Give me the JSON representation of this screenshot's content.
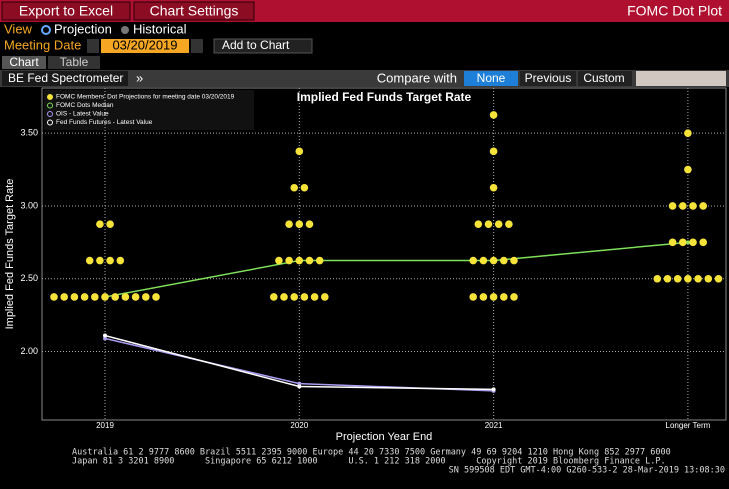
{
  "toolbar": {
    "export": "Export to Excel",
    "settings": "Chart Settings",
    "title": "FOMC Dot Plot"
  },
  "view": {
    "label": "View",
    "options": [
      "Projection",
      "Historical"
    ]
  },
  "meeting": {
    "label": "Meeting Date",
    "date": "03/20/2019",
    "add": "Add to Chart"
  },
  "tabs": [
    "Chart",
    "Table"
  ],
  "compare": {
    "source": "BE Fed Spectrometer",
    "more": "»",
    "label": "Compare with",
    "options": [
      "None",
      "Previous",
      "Custom"
    ]
  },
  "footer": [
    "Australia 61 2 9777 8600 Brazil 5511 2395 9000 Europe 44 20 7330 7500 Germany 49 69 9204 1210 Hong Kong 852 2977 6000",
    "Japan 81 3 3201 8900      Singapore 65 6212 1000      U.S. 1 212 318 2000      Copyright 2019 Bloomberg Finance L.P.",
    "SN 599508 EDT  GMT-4:00 G260-533-2 28-Mar-2019 13:08:30"
  ],
  "chart_data": {
    "type": "scatter",
    "title": "Implied Fed Funds Target Rate",
    "x_label": "Projection Year End",
    "y_label": "Implied Fed Funds Target Rate",
    "categories": [
      "2019",
      "2020",
      "2021",
      "Longer Term"
    ],
    "dots": {
      "name": "FOMC Members' Dot Projections for meeting date 03/20/2019",
      "color": "#f5e33a",
      "values": [
        [
          2.375,
          2.375,
          2.375,
          2.375,
          2.375,
          2.375,
          2.375,
          2.375,
          2.375,
          2.375,
          2.375,
          2.625,
          2.625,
          2.625,
          2.625,
          2.875,
          2.875
        ],
        [
          2.375,
          2.375,
          2.375,
          2.375,
          2.375,
          2.375,
          2.625,
          2.625,
          2.625,
          2.625,
          2.625,
          2.875,
          2.875,
          2.875,
          3.125,
          3.125,
          3.375
        ],
        [
          2.375,
          2.375,
          2.375,
          2.375,
          2.375,
          2.625,
          2.625,
          2.625,
          2.625,
          2.625,
          2.875,
          2.875,
          2.875,
          2.875,
          3.125,
          3.375,
          3.625
        ],
        [
          2.5,
          2.5,
          2.5,
          2.5,
          2.5,
          2.5,
          2.5,
          2.75,
          2.75,
          2.75,
          2.75,
          3.0,
          3.0,
          3.0,
          3.0,
          3.25,
          3.5
        ]
      ]
    },
    "series": [
      {
        "name": "FOMC Dots Median",
        "color": "#7fe05a",
        "values": [
          2.375,
          2.625,
          2.625,
          2.75
        ]
      },
      {
        "name": "OIS - Latest Value",
        "color": "#a99cf0",
        "values": [
          2.09,
          1.78,
          1.73,
          null
        ]
      },
      {
        "name": "Fed Funds Futures - Latest Value",
        "color": "#ffffff",
        "values": [
          2.11,
          1.76,
          1.74,
          null
        ]
      }
    ],
    "ylim": [
      1.53,
      3.81
    ],
    "yticks": [
      {
        "value": 2.0,
        "label": "2.00"
      },
      {
        "value": 2.5,
        "label": "2.50"
      },
      {
        "value": 3.0,
        "label": "3.00"
      },
      {
        "value": 3.5,
        "label": "3.50"
      }
    ],
    "grid": true
  }
}
